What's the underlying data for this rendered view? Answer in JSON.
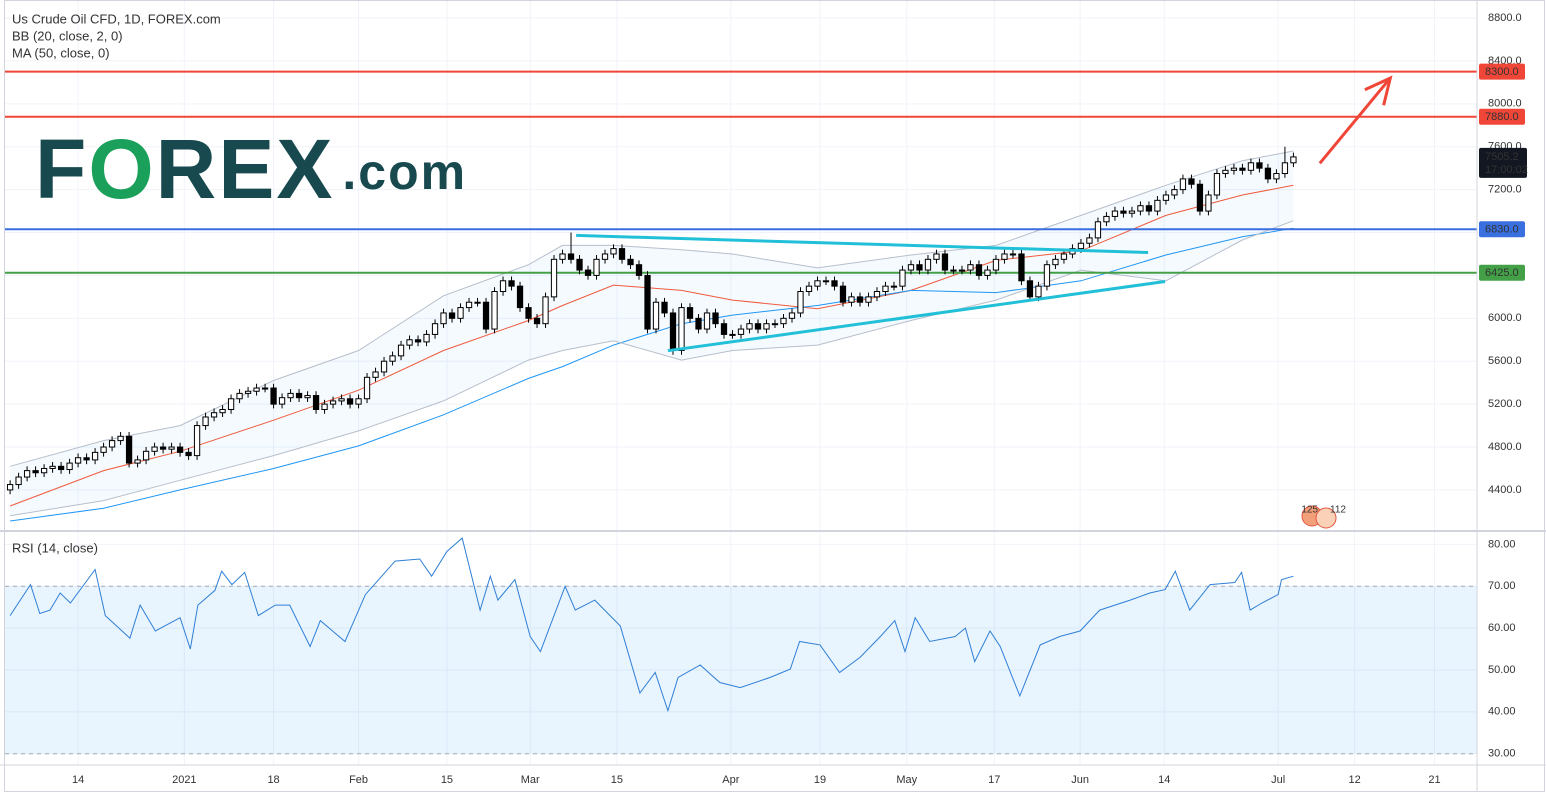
{
  "logo": [
    "F",
    "O",
    "REX",
    ".com"
  ],
  "events": [
    "125",
    "112"
  ],
  "chart_data": [
    {
      "type": "candlestick",
      "title": "Us Crude Oil CFD, 1D, FOREX.com",
      "indicators": [
        "BB (20, close, 2, 0)",
        "MA (50, close, 0)"
      ],
      "xlim": [
        -0.6,
        172.6
      ],
      "xticks": [
        {
          "value": 8,
          "label": "14"
        },
        {
          "value": 20.5,
          "label": "2021"
        },
        {
          "value": 31,
          "label": "18"
        },
        {
          "value": 41,
          "label": "Feb"
        },
        {
          "value": 51.4,
          "label": "15"
        },
        {
          "value": 61.2,
          "label": "Mar"
        },
        {
          "value": 71.4,
          "label": "15"
        },
        {
          "value": 84.8,
          "label": "Apr"
        },
        {
          "value": 95.3,
          "label": "19"
        },
        {
          "value": 105.5,
          "label": "May"
        },
        {
          "value": 115.8,
          "label": "17"
        },
        {
          "value": 125.9,
          "label": "Jun"
        },
        {
          "value": 135.8,
          "label": "14"
        },
        {
          "value": 149.2,
          "label": "Jul"
        },
        {
          "value": 158.2,
          "label": "12"
        },
        {
          "value": 167.6,
          "label": "21"
        }
      ],
      "ylim": [
        4017,
        8968
      ],
      "yticks": [
        {
          "value": 4400,
          "label": "4400.0"
        },
        {
          "value": 4800,
          "label": "4800.0"
        },
        {
          "value": 5200,
          "label": "5200.0"
        },
        {
          "value": 5600,
          "label": "5600.0"
        },
        {
          "value": 6000,
          "label": "6000.0"
        },
        {
          "value": 6400,
          "label": "6400.0"
        },
        {
          "value": 6800,
          "label": "6800.0"
        },
        {
          "value": 7200,
          "label": "7200.0"
        },
        {
          "value": 7600,
          "label": "7600.0"
        },
        {
          "value": 8000,
          "label": "8000.0"
        },
        {
          "value": 8400,
          "label": "8400.0"
        },
        {
          "value": 8800,
          "label": "8800.0"
        }
      ],
      "up_color": "#ffffff",
      "down_color": "#000000",
      "open": [
        4400,
        4450,
        4520,
        4580,
        4560,
        4600,
        4620,
        4590,
        4650,
        4700,
        4680,
        4750,
        4800,
        4860,
        4900,
        4650,
        4680,
        4760,
        4800,
        4780,
        4800,
        4750,
        4720,
        5000,
        5080,
        5120,
        5150,
        5250,
        5300,
        5320,
        5350,
        5350,
        5200,
        5260,
        5300,
        5260,
        5280,
        5150,
        5200,
        5230,
        5250,
        5200,
        5250,
        5450,
        5500,
        5600,
        5650,
        5750,
        5800,
        5780,
        5850,
        5950,
        6050,
        6000,
        6100,
        6150,
        6150,
        5900,
        6250,
        6350,
        6300,
        6100,
        6000,
        5950,
        6200,
        6550,
        6600,
        6550,
        6450,
        6400,
        6550,
        6600,
        6650,
        6550,
        6500,
        6400,
        5900,
        6150,
        6050,
        5700,
        6100,
        6000,
        5900,
        6050,
        5950,
        5850,
        5850,
        5900,
        5950,
        5900,
        5950,
        5950,
        6000,
        6050,
        6250,
        6300,
        6350,
        6350,
        6300,
        6150,
        6200,
        6150,
        6200,
        6250,
        6300,
        6300,
        6450,
        6500,
        6450,
        6550,
        6600,
        6450,
        6450,
        6450,
        6500,
        6400,
        6450,
        6550,
        6600,
        6600,
        6350,
        6200,
        6300,
        6500,
        6550,
        6600,
        6650,
        6700,
        6750,
        6900,
        6950,
        7000,
        6980,
        7000,
        7050,
        7000,
        7100,
        7150,
        7200,
        7300,
        7250,
        7000,
        7150,
        7350,
        7380,
        7400,
        7380,
        7450,
        7400,
        7300,
        7350,
        7450
      ],
      "high": [
        4490,
        4560,
        4620,
        4620,
        4640,
        4660,
        4660,
        4690,
        4740,
        4740,
        4790,
        4840,
        4900,
        4940,
        4940,
        4720,
        4800,
        4840,
        4840,
        4840,
        4840,
        4790,
        5040,
        5120,
        5160,
        5190,
        5290,
        5340,
        5360,
        5390,
        5390,
        5390,
        5300,
        5340,
        5340,
        5320,
        5320,
        5240,
        5270,
        5290,
        5290,
        5290,
        5490,
        5540,
        5640,
        5690,
        5790,
        5840,
        5840,
        5890,
        5990,
        6090,
        6090,
        6140,
        6190,
        6190,
        6190,
        6290,
        6390,
        6390,
        6340,
        6140,
        6040,
        6240,
        6590,
        6640,
        6800,
        6590,
        6490,
        6590,
        6640,
        6690,
        6690,
        6590,
        6540,
        6440,
        6190,
        6190,
        6090,
        6140,
        6140,
        6040,
        6090,
        6090,
        5990,
        5890,
        5940,
        5990,
        5990,
        5990,
        5990,
        6040,
        6090,
        6290,
        6340,
        6390,
        6390,
        6390,
        6340,
        6240,
        6240,
        6240,
        6290,
        6340,
        6340,
        6490,
        6540,
        6540,
        6590,
        6640,
        6640,
        6490,
        6490,
        6540,
        6540,
        6490,
        6590,
        6640,
        6640,
        6640,
        6390,
        6340,
        6540,
        6590,
        6640,
        6690,
        6740,
        6790,
        6940,
        6990,
        7040,
        7040,
        7040,
        7090,
        7090,
        7140,
        7190,
        7240,
        7340,
        7340,
        7290,
        7190,
        7390,
        7420,
        7440,
        7440,
        7490,
        7490,
        7440,
        7390,
        7600,
        7545
      ],
      "low": [
        4360,
        4410,
        4480,
        4520,
        4520,
        4560,
        4550,
        4550,
        4610,
        4640,
        4640,
        4710,
        4760,
        4820,
        4610,
        4610,
        4640,
        4720,
        4740,
        4740,
        4710,
        4680,
        4680,
        4960,
        5040,
        5080,
        5110,
        5210,
        5260,
        5280,
        5310,
        5160,
        5160,
        5220,
        5220,
        5220,
        5110,
        5110,
        5160,
        5190,
        5160,
        5160,
        5210,
        5410,
        5460,
        5560,
        5610,
        5710,
        5740,
        5740,
        5810,
        5910,
        5960,
        5960,
        6060,
        6110,
        5860,
        5860,
        6210,
        6260,
        6060,
        5960,
        5910,
        5910,
        6160,
        6510,
        6510,
        6410,
        6360,
        6360,
        6510,
        6560,
        6510,
        6460,
        6360,
        5860,
        5860,
        6010,
        5660,
        5660,
        5960,
        5860,
        5860,
        5910,
        5810,
        5810,
        5810,
        5860,
        5860,
        5860,
        5910,
        5910,
        5960,
        6010,
        6210,
        6260,
        6310,
        6260,
        6110,
        6110,
        6110,
        6110,
        6160,
        6210,
        6260,
        6260,
        6410,
        6410,
        6410,
        6510,
        6410,
        6410,
        6410,
        6410,
        6360,
        6360,
        6410,
        6510,
        6560,
        6310,
        6160,
        6160,
        6260,
        6460,
        6510,
        6560,
        6610,
        6660,
        6710,
        6860,
        6910,
        6940,
        6940,
        6960,
        6960,
        6960,
        7060,
        7110,
        7160,
        7210,
        6960,
        6960,
        7110,
        7310,
        7340,
        7340,
        7340,
        7360,
        7260,
        7260,
        7310,
        7410
      ],
      "close": [
        4450,
        4520,
        4580,
        4560,
        4600,
        4620,
        4590,
        4650,
        4700,
        4680,
        4750,
        4800,
        4860,
        4900,
        4650,
        4680,
        4760,
        4800,
        4780,
        4800,
        4750,
        4720,
        5000,
        5080,
        5120,
        5150,
        5250,
        5300,
        5320,
        5350,
        5350,
        5200,
        5260,
        5300,
        5260,
        5280,
        5150,
        5200,
        5230,
        5250,
        5200,
        5250,
        5450,
        5500,
        5600,
        5650,
        5750,
        5800,
        5780,
        5850,
        5950,
        6050,
        6000,
        6100,
        6150,
        6150,
        5900,
        6250,
        6350,
        6300,
        6100,
        6000,
        5950,
        6200,
        6550,
        6600,
        6550,
        6450,
        6400,
        6550,
        6600,
        6650,
        6550,
        6500,
        6400,
        5900,
        6150,
        6050,
        5700,
        6100,
        6000,
        5900,
        6050,
        5950,
        5850,
        5850,
        5900,
        5950,
        5900,
        5950,
        5950,
        6000,
        6050,
        6250,
        6300,
        6350,
        6350,
        6300,
        6150,
        6200,
        6150,
        6200,
        6250,
        6300,
        6300,
        6450,
        6500,
        6450,
        6550,
        6600,
        6450,
        6450,
        6450,
        6500,
        6400,
        6450,
        6550,
        6600,
        6600,
        6350,
        6200,
        6300,
        6500,
        6550,
        6600,
        6650,
        6700,
        6750,
        6900,
        6950,
        7000,
        6980,
        7000,
        7050,
        7000,
        7100,
        7150,
        7200,
        7300,
        7250,
        7000,
        7150,
        7350,
        7380,
        7400,
        7380,
        7450,
        7400,
        7300,
        7350,
        7450,
        7505
      ],
      "series": [
        {
          "color": "#ef5a3c",
          "x": [
            0,
            11,
            20,
            31,
            41,
            51,
            61,
            65,
            71,
            79,
            85,
            95,
            106,
            116,
            126,
            136,
            145,
            151
          ],
          "values": [
            4250,
            4580,
            4760,
            5050,
            5330,
            5700,
            5980,
            6120,
            6310,
            6260,
            6170,
            6090,
            6260,
            6540,
            6630,
            6960,
            7150,
            7240
          ]
        },
        {
          "color": "#2196f3",
          "x": [
            0,
            11,
            20,
            31,
            41,
            51,
            61,
            65,
            71,
            79,
            85,
            95,
            106,
            116,
            126,
            136,
            145,
            151
          ],
          "values": [
            4110,
            4230,
            4400,
            4600,
            4810,
            5100,
            5440,
            5550,
            5750,
            5950,
            6030,
            6120,
            6260,
            6240,
            6350,
            6590,
            6760,
            6840
          ]
        },
        {
          "color": "#b7bfcc",
          "x": [
            0,
            11,
            20,
            31,
            41,
            51,
            61,
            65,
            71,
            79,
            85,
            95,
            106,
            116,
            126,
            136,
            145,
            151
          ],
          "values": [
            4620,
            4860,
            5000,
            5420,
            5700,
            6210,
            6500,
            6680,
            6680,
            6640,
            6600,
            6470,
            6590,
            6680,
            6960,
            7240,
            7470,
            7560
          ]
        },
        {
          "color": "#b7bfcc",
          "x": [
            0,
            11,
            20,
            31,
            41,
            51,
            61,
            65,
            71,
            79,
            85,
            95,
            106,
            116,
            126,
            136,
            145,
            151
          ],
          "values": [
            4160,
            4300,
            4490,
            4720,
            4950,
            5230,
            5610,
            5700,
            5790,
            5610,
            5700,
            5750,
            5980,
            6170,
            6450,
            6350,
            6730,
            6910
          ]
        }
      ],
      "band_fill": "rgba(33,150,243,0.05)",
      "levels": [
        {
          "value": 8300,
          "label": "8300.0",
          "color": "#ef4638"
        },
        {
          "value": 7880,
          "label": "7880.0",
          "color": "#ef4638"
        },
        {
          "value": 6830,
          "label": "6830.0",
          "color": "#3a6fe0"
        },
        {
          "value": 6425,
          "label": "6425.0",
          "color": "#43a047"
        }
      ],
      "trendlines": [
        {
          "x": [
            66.6,
            133.9
          ],
          "values": [
            6773,
            6614
          ],
          "color": "#22c0d8"
        },
        {
          "x": [
            77.4,
            135.9
          ],
          "values": [
            5698,
            6343
          ],
          "color": "#22c0d8"
        }
      ],
      "arrow": {
        "x": [
          154.1,
          162.4
        ],
        "values": [
          7445,
          8240
        ],
        "color": "#ef4638"
      },
      "last": 7505.2,
      "countdown": "17:00:02"
    },
    {
      "type": "line",
      "title": "RSI (14, close)",
      "color": "#2f7fd6",
      "xlim": [
        -0.6,
        172.6
      ],
      "ylim": [
        27.3,
        83.2
      ],
      "yticks": [
        {
          "value": 30,
          "label": "30.00"
        },
        {
          "value": 40,
          "label": "40.00"
        },
        {
          "value": 50,
          "label": "50.00"
        },
        {
          "value": 60,
          "label": "60.00"
        },
        {
          "value": 70,
          "label": "70.00"
        },
        {
          "value": 80,
          "label": "80.00"
        }
      ],
      "band": [
        30,
        70
      ],
      "band_color": "rgba(33,150,243,0.1)",
      "x": [
        0,
        2.4,
        3.5,
        4.7,
        5.9,
        7.1,
        10,
        11.2,
        14.1,
        15.3,
        17.1,
        20,
        21.2,
        22.1,
        24.1,
        24.9,
        26.1,
        27.6,
        29.2,
        31.2,
        32.9,
        35.3,
        36.5,
        39.4,
        41.8,
        45.3,
        48.2,
        49.6,
        51.4,
        53.2,
        55.3,
        56.5,
        57.4,
        59.4,
        61.2,
        62.4,
        65.3,
        66.5,
        68.8,
        71.8,
        74.1,
        75.9,
        77.4,
        78.6,
        81.2,
        83.5,
        85.9,
        89.4,
        91.8,
        92.9,
        95.3,
        97.6,
        100,
        102.4,
        104.1,
        105.3,
        106.5,
        108.2,
        111.2,
        112.4,
        113.5,
        115.3,
        116.5,
        118.8,
        121.2,
        123.5,
        125.9,
        128.2,
        131.8,
        134.1,
        135.9,
        137.1,
        138.8,
        141.2,
        144.1,
        144.9,
        145.9,
        147.3,
        149.2,
        149.6,
        151
      ],
      "values": [
        63,
        70.4,
        63.5,
        64.3,
        68.4,
        66,
        74,
        63,
        57.6,
        65.5,
        59.3,
        62.5,
        55,
        65.5,
        69,
        73.6,
        70.4,
        73.3,
        63,
        65.5,
        65.5,
        55.6,
        61.8,
        56.8,
        68,
        76,
        76.5,
        72.4,
        78.3,
        81.5,
        64.3,
        72.4,
        66.7,
        71.6,
        58,
        54.4,
        70,
        64.3,
        66.7,
        60.5,
        44.5,
        49.4,
        40.3,
        48.2,
        51.2,
        47,
        45.8,
        48.2,
        50.2,
        56.8,
        56,
        49.4,
        53,
        58,
        61.8,
        54.4,
        62.5,
        56.8,
        58,
        60,
        52,
        59.3,
        55.6,
        43.8,
        56,
        58,
        59.3,
        64.3,
        66.7,
        68.4,
        69.2,
        73.6,
        64.3,
        70.4,
        70.9,
        73.3,
        64.3,
        66,
        68,
        71.6,
        72.4
      ]
    }
  ]
}
